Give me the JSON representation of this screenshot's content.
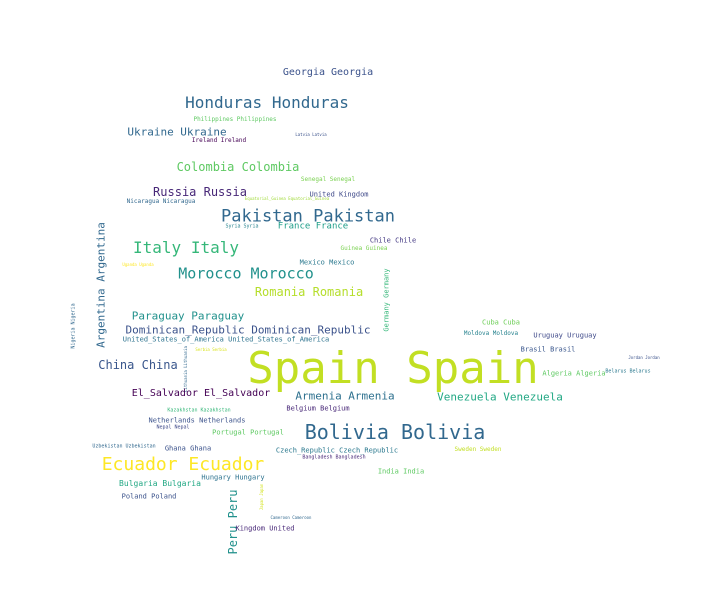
{
  "words": [
    {
      "text": "Georgia Georgia",
      "color": "#3b528b"
    },
    {
      "text": "Honduras Honduras",
      "color": "#31688e"
    },
    {
      "text": "Philippines Philippines",
      "color": "#5ec962"
    },
    {
      "text": "Ukraine Ukraine",
      "color": "#31688e"
    },
    {
      "text": "Ireland Ireland",
      "color": "#440154"
    },
    {
      "text": "Latvia Latvia",
      "color": "#3b528b"
    },
    {
      "text": "Colombia Colombia",
      "color": "#5ec962"
    },
    {
      "text": "Senegal Senegal",
      "color": "#7ad151"
    },
    {
      "text": "Russia Russia",
      "color": "#482878"
    },
    {
      "text": "United Kingdom",
      "color": "#3e4989"
    },
    {
      "text": "Nicaragua Nicaragua",
      "color": "#31688e"
    },
    {
      "text": "Equatorial_Guinea Equatorial_Guinea",
      "color": "#a0da39"
    },
    {
      "text": "Pakistan Pakistan",
      "color": "#31688e"
    },
    {
      "text": "Syria Syria",
      "color": "#26828e"
    },
    {
      "text": "France France",
      "color": "#1f9e89"
    },
    {
      "text": "Chile Chile",
      "color": "#443983"
    },
    {
      "text": "Italy Italy",
      "color": "#35b779"
    },
    {
      "text": "Guinea Guinea",
      "color": "#7ad151"
    },
    {
      "text": "Argentina Argentina",
      "color": "#31688e"
    },
    {
      "text": "Mexico Mexico",
      "color": "#2a788e"
    },
    {
      "text": "Uganda Uganda",
      "color": "#fde725"
    },
    {
      "text": "Morocco Morocco",
      "color": "#21918c"
    },
    {
      "text": "Germany Germany",
      "color": "#35b779"
    },
    {
      "text": "Romania Romania",
      "color": "#b5de2b"
    },
    {
      "text": "Nigeria Nigeria",
      "color": "#31688e"
    },
    {
      "text": "Paraguay Paraguay",
      "color": "#21918c"
    },
    {
      "text": "Cuba Cuba",
      "color": "#6ece58"
    },
    {
      "text": "Dominican_Republic Dominican_Republic",
      "color": "#3b528b"
    },
    {
      "text": "Moldova Moldova",
      "color": "#26828e"
    },
    {
      "text": "Uruguay Uruguay",
      "color": "#3e4989"
    },
    {
      "text": "United_States_of_America United_States_of_America",
      "color": "#2c728e"
    },
    {
      "text": "Brasil Brasil",
      "color": "#39568c"
    },
    {
      "text": "Serbia Serbia",
      "color": "#d8e219"
    },
    {
      "text": "Spain Spain",
      "color": "#c2df23"
    },
    {
      "text": "Jordan Jordan",
      "color": "#3b528b"
    },
    {
      "text": "China China",
      "color": "#39568c"
    },
    {
      "text": "Algeria Algeria",
      "color": "#5ec962"
    },
    {
      "text": "Belarus Belarus",
      "color": "#2a788e"
    },
    {
      "text": "Lithuania Lithuania",
      "color": "#31688e"
    },
    {
      "text": "Armenia Armenia",
      "color": "#2d708e"
    },
    {
      "text": "El_Salvador El_Salvador",
      "color": "#440154"
    },
    {
      "text": "Venezuela Venezuela",
      "color": "#22a884"
    },
    {
      "text": "Belgium Belgium",
      "color": "#482878"
    },
    {
      "text": "Kazakhstan Kazakhstan",
      "color": "#35b779"
    },
    {
      "text": "Netherlands Netherlands",
      "color": "#3b528b"
    },
    {
      "text": "Nepal Nepal",
      "color": "#3e4989"
    },
    {
      "text": "Bolivia Bolivia",
      "color": "#31688e"
    },
    {
      "text": "Portugal Portugal",
      "color": "#5ec962"
    },
    {
      "text": "Uzbekistan Uzbekistan",
      "color": "#31688e"
    },
    {
      "text": "Ghana Ghana",
      "color": "#3b528b"
    },
    {
      "text": "Czech_Republic Czech_Republic",
      "color": "#2a788e"
    },
    {
      "text": "Sweden Sweden",
      "color": "#c2df23"
    },
    {
      "text": "Bangladesh Bangladesh",
      "color": "#482878"
    },
    {
      "text": "Ecuador Ecuador",
      "color": "#fde725"
    },
    {
      "text": "India India",
      "color": "#5ec962"
    },
    {
      "text": "Hungary Hungary",
      "color": "#2c728e"
    },
    {
      "text": "Bulgaria Bulgaria",
      "color": "#22a884"
    },
    {
      "text": "Poland Poland",
      "color": "#3b528b"
    },
    {
      "text": "Peru Peru",
      "color": "#21918c"
    },
    {
      "text": "Japan Japan",
      "color": "#d2e21b"
    },
    {
      "text": "Cameroon Cameroon",
      "color": "#31688e"
    },
    {
      "text": "Kingdom United",
      "color": "#482878"
    }
  ]
}
